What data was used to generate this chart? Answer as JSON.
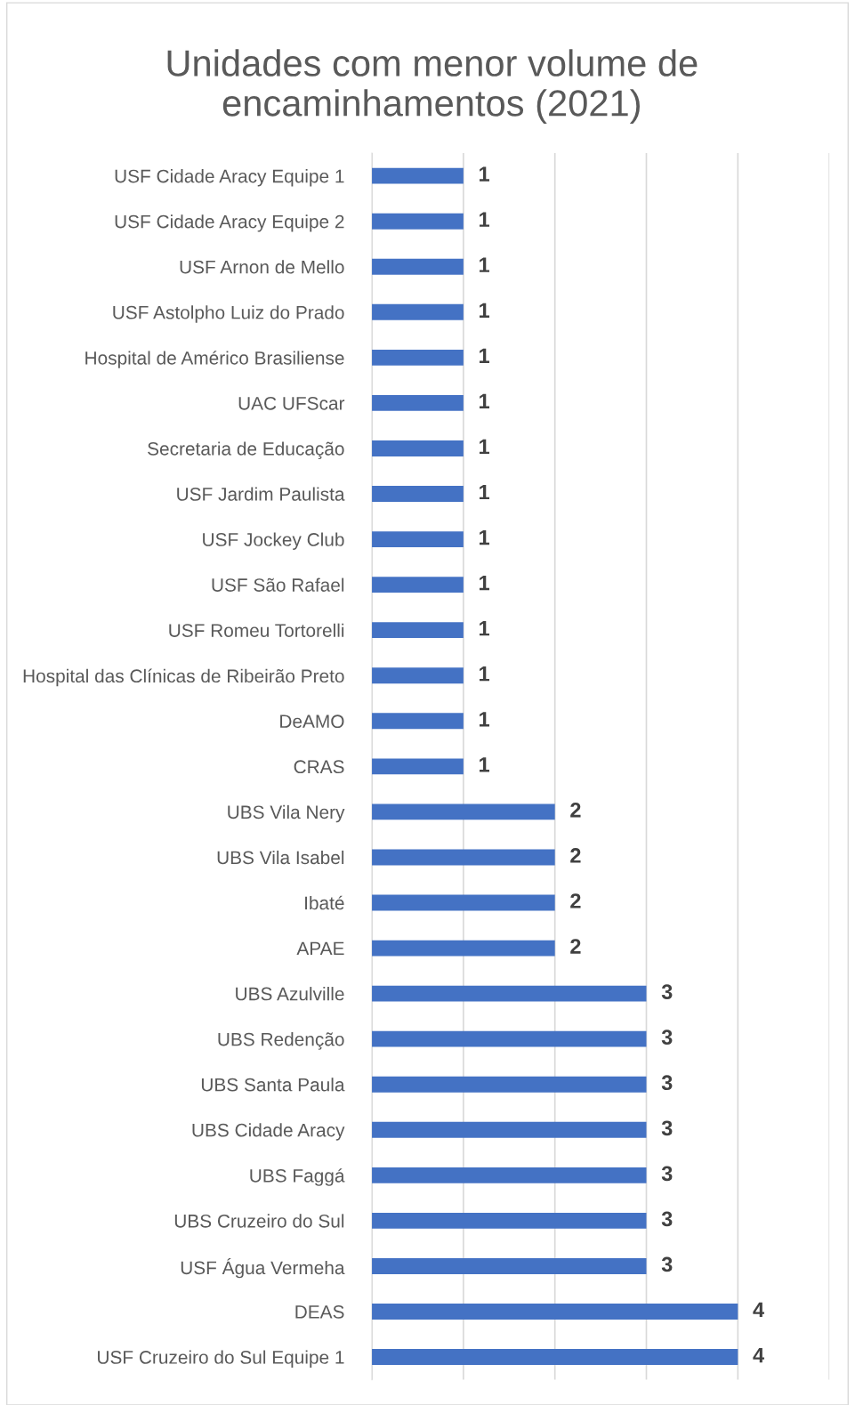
{
  "chart_data": {
    "type": "bar",
    "orientation": "horizontal",
    "title": "Unidades com menor volume de encaminhamentos (2021)",
    "categories": [
      "USF Cidade Aracy Equipe 1",
      "USF Cidade Aracy Equipe 2",
      "USF Arnon de Mello",
      "USF Astolpho Luiz do Prado",
      "Hospital de Américo Brasiliense",
      "UAC UFScar",
      "Secretaria de Educação",
      "USF Jardim Paulista",
      "USF Jockey Club",
      "USF São Rafael",
      "USF Romeu Tortorelli",
      "Hospital das Clínicas de Ribeirão Preto",
      "DeAMO",
      "CRAS",
      "UBS Vila Nery",
      "UBS Vila Isabel",
      "Ibaté",
      "APAE",
      "UBS Azulville",
      "UBS Redenção",
      "UBS Santa Paula",
      "UBS Cidade Aracy",
      "UBS Faggá",
      "UBS Cruzeiro do Sul",
      "USF Água Vermeha",
      "DEAS",
      "USF Cruzeiro do Sul Equipe 1"
    ],
    "values": [
      1,
      1,
      1,
      1,
      1,
      1,
      1,
      1,
      1,
      1,
      1,
      1,
      1,
      1,
      2,
      2,
      2,
      2,
      3,
      3,
      3,
      3,
      3,
      3,
      3,
      4,
      4
    ],
    "color": "#4472c4",
    "data_labels": true,
    "grid": "x",
    "tick_labels": "y",
    "legend": false,
    "xlim": [
      0,
      5
    ],
    "xticks": [
      {
        "value": 0,
        "label": null
      },
      {
        "value": 1,
        "label": null
      },
      {
        "value": 2,
        "label": null
      },
      {
        "value": 3,
        "label": null
      },
      {
        "value": 4,
        "label": null
      },
      {
        "value": 5,
        "label": null
      }
    ]
  }
}
